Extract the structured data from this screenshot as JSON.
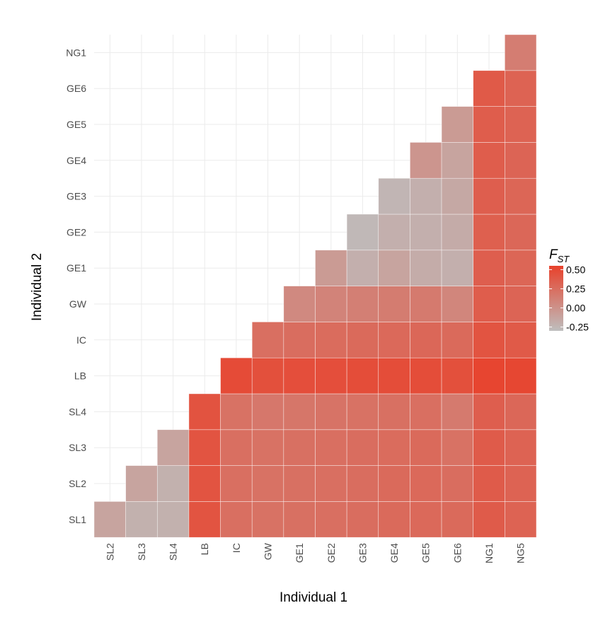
{
  "chart_data": {
    "type": "heatmap",
    "xlabel": "Individual 1",
    "ylabel": "Individual 2",
    "x_categories": [
      "SL2",
      "SL3",
      "SL4",
      "LB",
      "IC",
      "GW",
      "GE1",
      "GE2",
      "GE3",
      "GE4",
      "GE5",
      "GE6",
      "NG1",
      "NG5"
    ],
    "y_categories": [
      "SL1",
      "SL2",
      "SL3",
      "SL4",
      "LB",
      "IC",
      "GW",
      "GE1",
      "GE2",
      "GE3",
      "GE4",
      "GE5",
      "GE6",
      "NG1"
    ],
    "matrix": [
      [
        -0.12,
        -0.21,
        -0.21,
        0.42,
        0.24,
        0.22,
        0.23,
        0.24,
        0.25,
        0.27,
        0.28,
        0.27,
        0.37,
        0.32
      ],
      [
        null,
        -0.12,
        -0.21,
        0.42,
        0.24,
        0.22,
        0.23,
        0.24,
        0.25,
        0.27,
        0.28,
        0.25,
        0.37,
        0.32
      ],
      [
        null,
        null,
        -0.12,
        0.42,
        0.24,
        0.22,
        0.23,
        0.24,
        0.25,
        0.26,
        0.27,
        0.22,
        0.37,
        0.32
      ],
      [
        null,
        null,
        null,
        0.43,
        0.22,
        0.18,
        0.19,
        0.21,
        0.22,
        0.23,
        0.24,
        0.16,
        0.35,
        0.29
      ],
      [
        null,
        null,
        null,
        null,
        0.48,
        0.45,
        0.46,
        0.46,
        0.47,
        0.47,
        0.47,
        0.45,
        0.52,
        0.51
      ],
      [
        null,
        null,
        null,
        null,
        null,
        0.24,
        0.25,
        0.26,
        0.27,
        0.28,
        0.29,
        0.27,
        0.42,
        0.38
      ],
      [
        null,
        null,
        null,
        null,
        null,
        null,
        0.06,
        0.1,
        0.13,
        0.15,
        0.16,
        0.08,
        0.36,
        0.31
      ],
      [
        null,
        null,
        null,
        null,
        null,
        null,
        null,
        -0.06,
        -0.2,
        -0.12,
        -0.18,
        -0.2,
        0.35,
        0.3
      ],
      [
        null,
        null,
        null,
        null,
        null,
        null,
        null,
        null,
        -0.26,
        -0.2,
        -0.2,
        -0.17,
        0.34,
        0.29
      ],
      [
        null,
        null,
        null,
        null,
        null,
        null,
        null,
        null,
        null,
        -0.24,
        -0.2,
        -0.15,
        0.35,
        0.3
      ],
      [
        null,
        null,
        null,
        null,
        null,
        null,
        null,
        null,
        null,
        null,
        -0.02,
        -0.12,
        0.36,
        0.31
      ],
      [
        null,
        null,
        null,
        null,
        null,
        null,
        null,
        null,
        null,
        null,
        null,
        -0.06,
        0.36,
        0.32
      ],
      [
        null,
        null,
        null,
        null,
        null,
        null,
        null,
        null,
        null,
        null,
        null,
        null,
        0.38,
        0.32
      ],
      [
        null,
        null,
        null,
        null,
        null,
        null,
        null,
        null,
        null,
        null,
        null,
        null,
        null,
        0.14
      ]
    ],
    "legend": {
      "title": "F",
      "subscript": "ST",
      "breaks": [
        "0.50",
        "0.25",
        "0.00",
        "-0.25"
      ],
      "min": -0.3,
      "max": 0.55,
      "low_color": "#bebebe",
      "high_color": "#e8412b",
      "position": "right"
    },
    "grid": true
  }
}
